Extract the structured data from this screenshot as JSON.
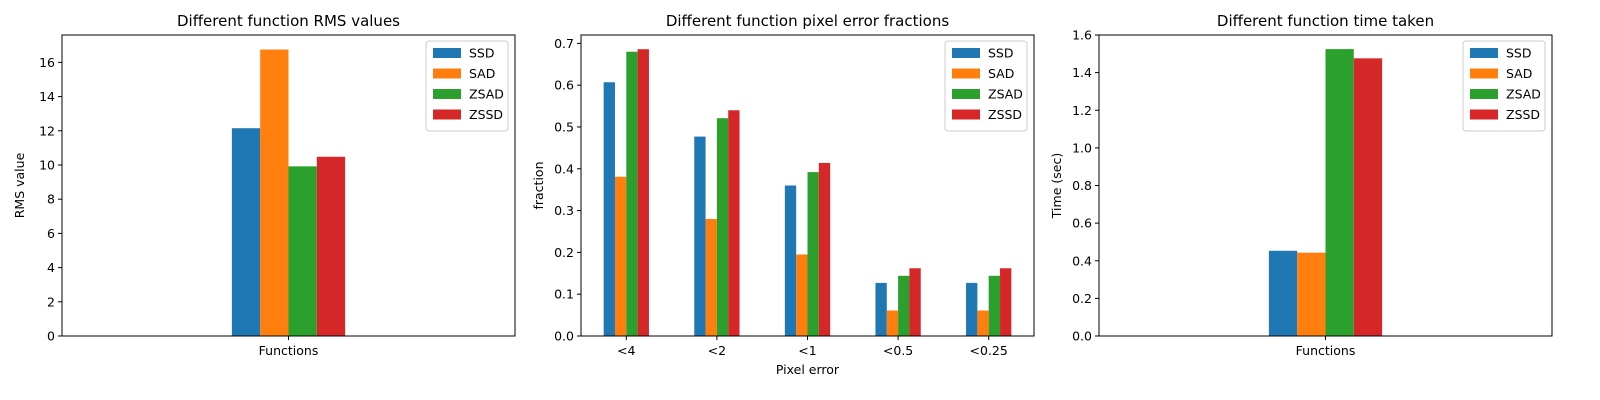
{
  "legend_colors": [
    "#1f77b4",
    "#ff7f0e",
    "#2ca02c",
    "#d62728"
  ],
  "chart_data": [
    {
      "type": "bar",
      "title": "Different function RMS values",
      "xlabel": "",
      "ylabel": "RMS value",
      "categories": [
        "Functions"
      ],
      "ylim": [
        0,
        17.6
      ],
      "yticks": [
        0,
        2,
        4,
        6,
        8,
        10,
        12,
        14,
        16
      ],
      "ytick_labels": [
        "0",
        "2",
        "4",
        "6",
        "8",
        "10",
        "12",
        "14",
        "16"
      ],
      "legend_position": "top-right",
      "series": [
        {
          "name": "SSD",
          "values": [
            12.15
          ]
        },
        {
          "name": "SAD",
          "values": [
            16.75
          ]
        },
        {
          "name": "ZSAD",
          "values": [
            9.92
          ]
        },
        {
          "name": "ZSSD",
          "values": [
            10.48
          ]
        }
      ]
    },
    {
      "type": "bar",
      "title": "Different function pixel error fractions",
      "xlabel": "Pixel error",
      "ylabel": "fraction",
      "categories": [
        "<4",
        "<2",
        "<1",
        "<0.5",
        "<0.25"
      ],
      "ylim": [
        0,
        0.72
      ],
      "yticks": [
        0,
        0.1,
        0.2,
        0.3,
        0.4,
        0.5,
        0.6,
        0.7
      ],
      "ytick_labels": [
        "0.0",
        "0.1",
        "0.2",
        "0.3",
        "0.4",
        "0.5",
        "0.6",
        "0.7"
      ],
      "legend_position": "top-right",
      "series": [
        {
          "name": "SSD",
          "values": [
            0.607,
            0.477,
            0.36,
            0.127,
            0.127
          ]
        },
        {
          "name": "SAD",
          "values": [
            0.381,
            0.28,
            0.195,
            0.061,
            0.061
          ]
        },
        {
          "name": "ZSAD",
          "values": [
            0.68,
            0.521,
            0.392,
            0.144,
            0.144
          ]
        },
        {
          "name": "ZSSD",
          "values": [
            0.686,
            0.54,
            0.414,
            0.162,
            0.162
          ]
        }
      ]
    },
    {
      "type": "bar",
      "title": "Different function time taken",
      "xlabel": "",
      "ylabel": "Time (sec)",
      "categories": [
        "Functions"
      ],
      "ylim": [
        0,
        1.6
      ],
      "yticks": [
        0,
        0.2,
        0.4,
        0.6,
        0.8,
        1.0,
        1.2,
        1.4,
        1.6
      ],
      "ytick_labels": [
        "0.0",
        "0.2",
        "0.4",
        "0.6",
        "0.8",
        "1.0",
        "1.2",
        "1.4",
        "1.6"
      ],
      "legend_position": "top-right",
      "series": [
        {
          "name": "SSD",
          "values": [
            0.453
          ]
        },
        {
          "name": "SAD",
          "values": [
            0.443
          ]
        },
        {
          "name": "ZSAD",
          "values": [
            1.525
          ]
        },
        {
          "name": "ZSSD",
          "values": [
            1.476
          ]
        }
      ]
    }
  ]
}
